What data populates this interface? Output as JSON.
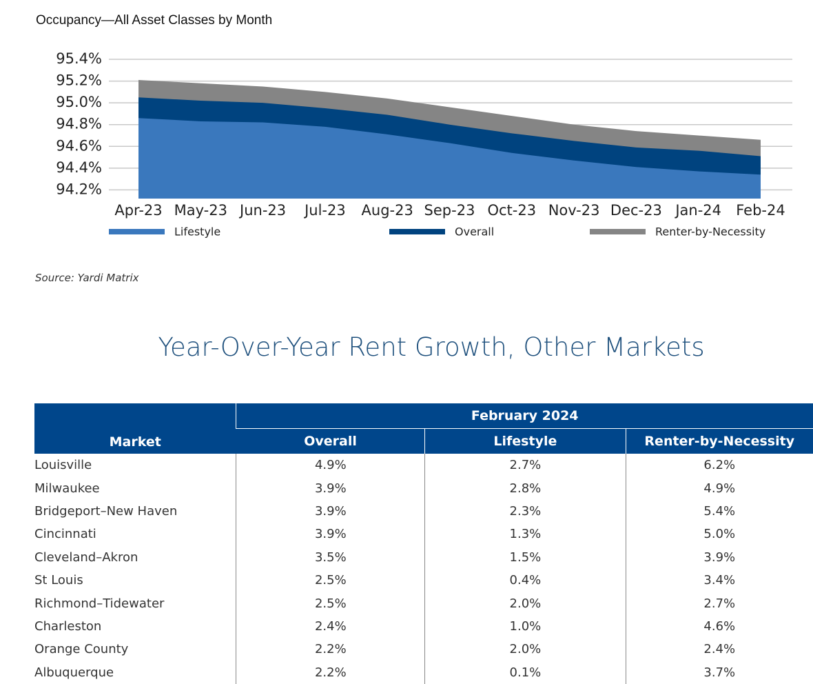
{
  "chart_data": {
    "type": "area",
    "title": "Occupancy—All Asset Classes by Month",
    "categories": [
      "Apr-23",
      "May-23",
      "Jun-23",
      "Jul-23",
      "Aug-23",
      "Sep-23",
      "Oct-23",
      "Nov-23",
      "Dec-23",
      "Jan-24",
      "Feb-24"
    ],
    "series": [
      {
        "name": "Lifestyle",
        "color": "#3a78bd",
        "values": [
          94.86,
          94.83,
          94.82,
          94.78,
          94.71,
          94.63,
          94.54,
          94.47,
          94.41,
          94.37,
          94.34
        ]
      },
      {
        "name": "Overall",
        "color": "#00437f",
        "values": [
          95.05,
          95.02,
          95.0,
          94.95,
          94.89,
          94.8,
          94.72,
          94.65,
          94.59,
          94.56,
          94.51
        ]
      },
      {
        "name": "Renter-by-Necessity",
        "color": "#858585",
        "values": [
          95.21,
          95.18,
          95.15,
          95.1,
          95.04,
          94.96,
          94.88,
          94.8,
          94.74,
          94.7,
          94.66
        ]
      }
    ],
    "ylim": [
      94.12,
      95.4
    ],
    "yticks": [
      {
        "value": 94.2,
        "label": "94.2%"
      },
      {
        "value": 94.4,
        "label": "94.4%"
      },
      {
        "value": 94.6,
        "label": "94.6%"
      },
      {
        "value": 94.8,
        "label": "94.8%"
      },
      {
        "value": 95.0,
        "label": "95.0%"
      },
      {
        "value": 95.2,
        "label": "95.2%"
      },
      {
        "value": 95.4,
        "label": "95.4%"
      }
    ],
    "grid": true,
    "legend": "bottom"
  },
  "source": "Source: Yardi Matrix",
  "table": {
    "title": "Year-Over-Year Rent Growth, Other Markets",
    "group_header": "February 2024",
    "columns": [
      "Market",
      "Overall",
      "Lifestyle",
      "Renter-by-Necessity"
    ],
    "rows": [
      [
        "Louisville",
        "4.9%",
        "2.7%",
        "6.2%"
      ],
      [
        "Milwaukee",
        "3.9%",
        "2.8%",
        "4.9%"
      ],
      [
        "Bridgeport–New Haven",
        "3.9%",
        "2.3%",
        "5.4%"
      ],
      [
        "Cincinnati",
        "3.9%",
        "1.3%",
        "5.0%"
      ],
      [
        "Cleveland–Akron",
        "3.5%",
        "1.5%",
        "3.9%"
      ],
      [
        "St Louis",
        "2.5%",
        "0.4%",
        "3.4%"
      ],
      [
        "Richmond–Tidewater",
        "2.5%",
        "2.0%",
        "2.7%"
      ],
      [
        "Charleston",
        "2.4%",
        "1.0%",
        "4.6%"
      ],
      [
        "Orange County",
        "2.2%",
        "2.0%",
        "2.4%"
      ],
      [
        "Albuquerque",
        "2.2%",
        "0.1%",
        "3.7%"
      ]
    ]
  }
}
